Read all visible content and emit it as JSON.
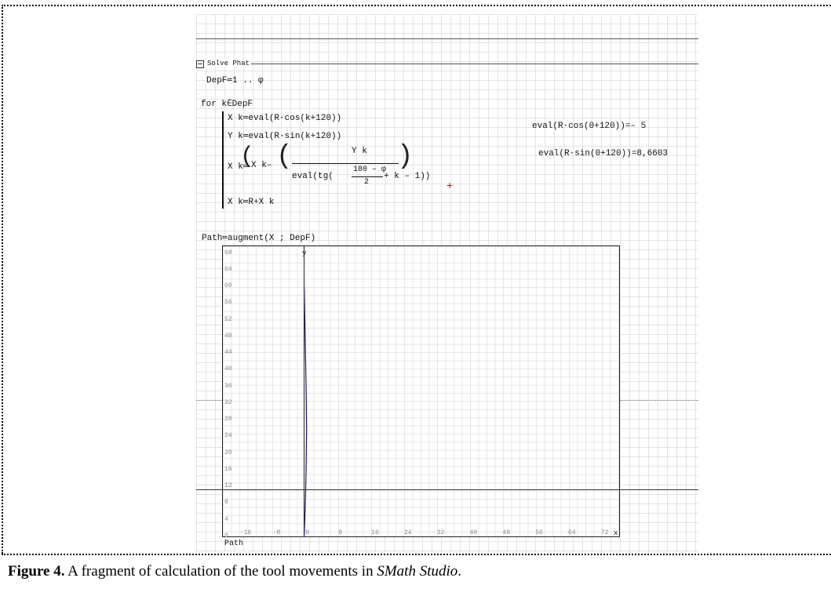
{
  "worksheet": {
    "region_title": "Solve Phat",
    "range_def": "DepF≔1 .. φ",
    "loop_head": "for k∈DepF",
    "stmt1": "X k≔eval(R·cos(k+120))",
    "stmt2": "Y k≔eval(R·sin(k+120))",
    "stmt3_lhs": "X k≔",
    "stmt3_x": "X k–",
    "stmt3_num": "Y k",
    "stmt3_den_pre": "eval(tg(",
    "stmt3_frac_num": "180 – φ",
    "stmt3_frac_den": "2",
    "stmt3_den_post": "+ k – 1))",
    "stmt4": "X k≔R+X k",
    "side_eval1": "eval(R·cos(0+120))=– 5",
    "side_eval2": "eval(R·sin(0+120))=8,6603",
    "path_def": "Path≔augment(X ; DepF)",
    "plot_xlabel": "Path"
  },
  "chart_data": {
    "type": "line",
    "ylabel": "y",
    "x_ticks": [
      "-16",
      "-8",
      "0",
      "8",
      "16",
      "24",
      "32",
      "40",
      "48",
      "56",
      "64",
      "72",
      "x"
    ],
    "y_ticks": [
      "68",
      "64",
      "60",
      "56",
      "52",
      "48",
      "44",
      "40",
      "36",
      "32",
      "28",
      "24",
      "20",
      "16",
      "12",
      "8",
      "4",
      "0"
    ],
    "xlim": [
      -20,
      77
    ],
    "ylim": [
      0,
      70
    ],
    "series": [
      {
        "x": [
          0,
          0.3,
          0.5,
          0.6,
          0.5,
          0.3,
          0.1,
          0
        ],
        "y": [
          0,
          8,
          16,
          26,
          36,
          46,
          55,
          60
        ],
        "color": "#1a1a7a"
      }
    ]
  },
  "caption": {
    "label": "Figure 4.",
    "text": " A fragment of calculation of the tool movements in ",
    "app": "SMath Studio",
    "end": "."
  }
}
